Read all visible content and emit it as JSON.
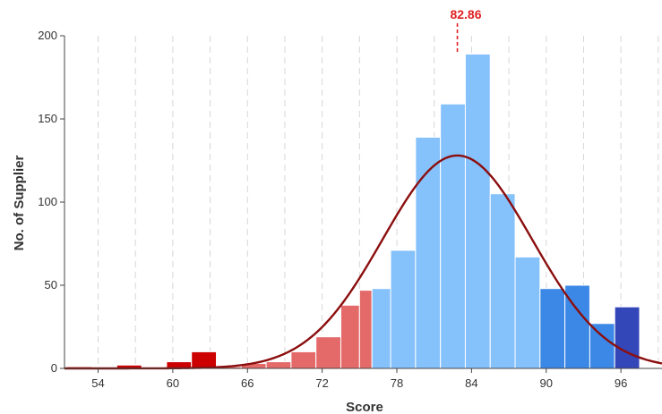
{
  "chart_data": {
    "type": "bar",
    "subtype": "histogram",
    "xlabel": "Score",
    "ylabel": "No. of Supplier",
    "xlim": [
      51.3,
      99.3
    ],
    "ylim": [
      0,
      200
    ],
    "grid": "vertical dashed",
    "xticks": [
      {
        "value": 54,
        "label": "54"
      },
      {
        "value": 60,
        "label": "60"
      },
      {
        "value": 66,
        "label": "66"
      },
      {
        "value": 72,
        "label": "72"
      },
      {
        "value": 78,
        "label": "78"
      },
      {
        "value": 84,
        "label": "84"
      },
      {
        "value": 90,
        "label": "90"
      },
      {
        "value": 96,
        "label": "96"
      }
    ],
    "yticks": [
      {
        "value": 0,
        "label": "0"
      },
      {
        "value": 50,
        "label": "50"
      },
      {
        "value": 100,
        "label": "100"
      },
      {
        "value": 150,
        "label": "150"
      },
      {
        "value": 200,
        "label": "200"
      }
    ],
    "bins": [
      {
        "start": 51.5,
        "end": 53.5,
        "count": 1,
        "color": "#cc0000"
      },
      {
        "start": 53.5,
        "end": 55.5,
        "count": 0,
        "color": "#cc0000"
      },
      {
        "start": 55.5,
        "end": 57.5,
        "count": 2,
        "color": "#cc0000"
      },
      {
        "start": 57.5,
        "end": 59.5,
        "count": 0,
        "color": "#cc0000"
      },
      {
        "start": 59.5,
        "end": 61.5,
        "count": 4,
        "color": "#cc0000"
      },
      {
        "start": 61.5,
        "end": 63.5,
        "count": 10,
        "color": "#cc0000"
      },
      {
        "start": 63.5,
        "end": 65.5,
        "count": 1,
        "color": "#e46a6a"
      },
      {
        "start": 65.5,
        "end": 67.5,
        "count": 3,
        "color": "#e46a6a"
      },
      {
        "start": 67.5,
        "end": 69.5,
        "count": 4,
        "color": "#e46a6a"
      },
      {
        "start": 69.5,
        "end": 71.5,
        "count": 10,
        "color": "#e46a6a"
      },
      {
        "start": 71.5,
        "end": 73.5,
        "count": 19,
        "color": "#e46a6a"
      },
      {
        "start": 73.5,
        "end": 75.0,
        "count": 38,
        "color": "#e46a6a"
      },
      {
        "start": 75.0,
        "end": 76.0,
        "count": 47,
        "color": "#e46a6a"
      },
      {
        "start": 76.0,
        "end": 77.5,
        "count": 48,
        "color": "#85c1fb"
      },
      {
        "start": 77.5,
        "end": 79.5,
        "count": 71,
        "color": "#85c1fb"
      },
      {
        "start": 79.5,
        "end": 81.5,
        "count": 139,
        "color": "#85c1fb"
      },
      {
        "start": 81.5,
        "end": 83.5,
        "count": 159,
        "color": "#85c1fb"
      },
      {
        "start": 83.5,
        "end": 85.5,
        "count": 189,
        "color": "#85c1fb"
      },
      {
        "start": 85.5,
        "end": 87.5,
        "count": 105,
        "color": "#85c1fb"
      },
      {
        "start": 87.5,
        "end": 89.5,
        "count": 67,
        "color": "#85c1fb"
      },
      {
        "start": 89.5,
        "end": 91.5,
        "count": 48,
        "color": "#3b88e6"
      },
      {
        "start": 91.5,
        "end": 93.5,
        "count": 50,
        "color": "#3b88e6"
      },
      {
        "start": 93.5,
        "end": 95.5,
        "count": 27,
        "color": "#3b88e6"
      },
      {
        "start": 95.5,
        "end": 97.5,
        "count": 37,
        "color": "#3447b8"
      }
    ],
    "fit_curve": {
      "type": "normal",
      "mean": 82.86,
      "stdev": 6.0,
      "peak": 128,
      "color": "#8b0e0e"
    },
    "mean_marker": {
      "value": 82.86,
      "label": "82.86",
      "color": "#e02020"
    }
  }
}
